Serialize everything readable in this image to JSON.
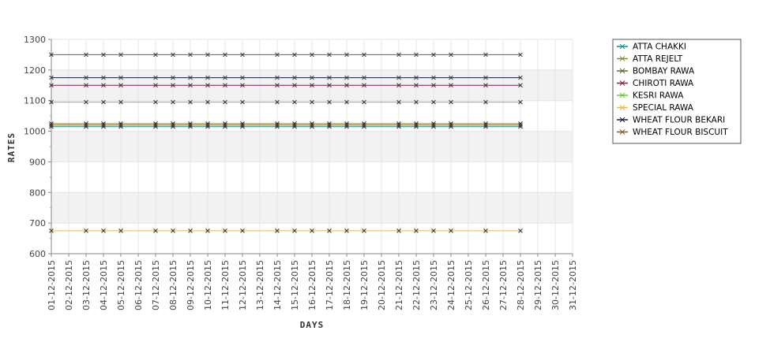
{
  "chart_data": {
    "type": "line",
    "title": "",
    "xlabel": "DAYS",
    "ylabel": "RATES",
    "ylim": [
      600,
      1300
    ],
    "yticks": [
      600,
      700,
      800,
      900,
      1000,
      1100,
      1200,
      1300
    ],
    "x_ticks": [
      "01-12-2015",
      "02-12-2015",
      "03-12-2015",
      "04-12-2015",
      "05-12-2015",
      "06-12-2015",
      "07-12-2015",
      "08-12-2015",
      "09-12-2015",
      "10-12-2015",
      "11-12-2015",
      "12-12-2015",
      "13-12-2015",
      "14-12-2015",
      "15-12-2015",
      "16-12-2015",
      "17-12-2015",
      "18-12-2015",
      "19-12-2015",
      "20-12-2015",
      "21-12-2015",
      "22-12-2015",
      "23-12-2015",
      "24-12-2015",
      "25-12-2015",
      "26-12-2015",
      "27-12-2015",
      "28-12-2015",
      "29-12-2015",
      "30-12-2015",
      "31-12-2015"
    ],
    "x": [
      "01-12-2015",
      "03-12-2015",
      "04-12-2015",
      "05-12-2015",
      "07-12-2015",
      "08-12-2015",
      "09-12-2015",
      "10-12-2015",
      "11-12-2015",
      "12-12-2015",
      "14-12-2015",
      "15-12-2015",
      "16-12-2015",
      "17-12-2015",
      "18-12-2015",
      "19-12-2015",
      "21-12-2015",
      "22-12-2015",
      "23-12-2015",
      "24-12-2015",
      "26-12-2015",
      "28-12-2015"
    ],
    "grid": true,
    "legend_position": "top-right",
    "series": [
      {
        "name": "ATTA CHAKKI",
        "color": "#0b8f8f",
        "value": 1015
      },
      {
        "name": "ATTA REJELT",
        "color": "#8a8a3a",
        "value": 1025
      },
      {
        "name": "BOMBAY RAWA",
        "color": "#666633",
        "value": 1250
      },
      {
        "name": "CHIROTI RAWA",
        "color": "#8b1a4a",
        "value": 1150
      },
      {
        "name": "KESRI RAWA",
        "color": "#66cc33",
        "value": 1095
      },
      {
        "name": "SPECIAL RAWA",
        "color": "#e8b84a",
        "value": 675
      },
      {
        "name": "WHEAT FLOUR BEKARI",
        "color": "#1a1a4a",
        "value": 1175
      },
      {
        "name": "WHEAT FLOUR BISCUIT",
        "color": "#8a5a1a",
        "value": 1020
      }
    ]
  }
}
